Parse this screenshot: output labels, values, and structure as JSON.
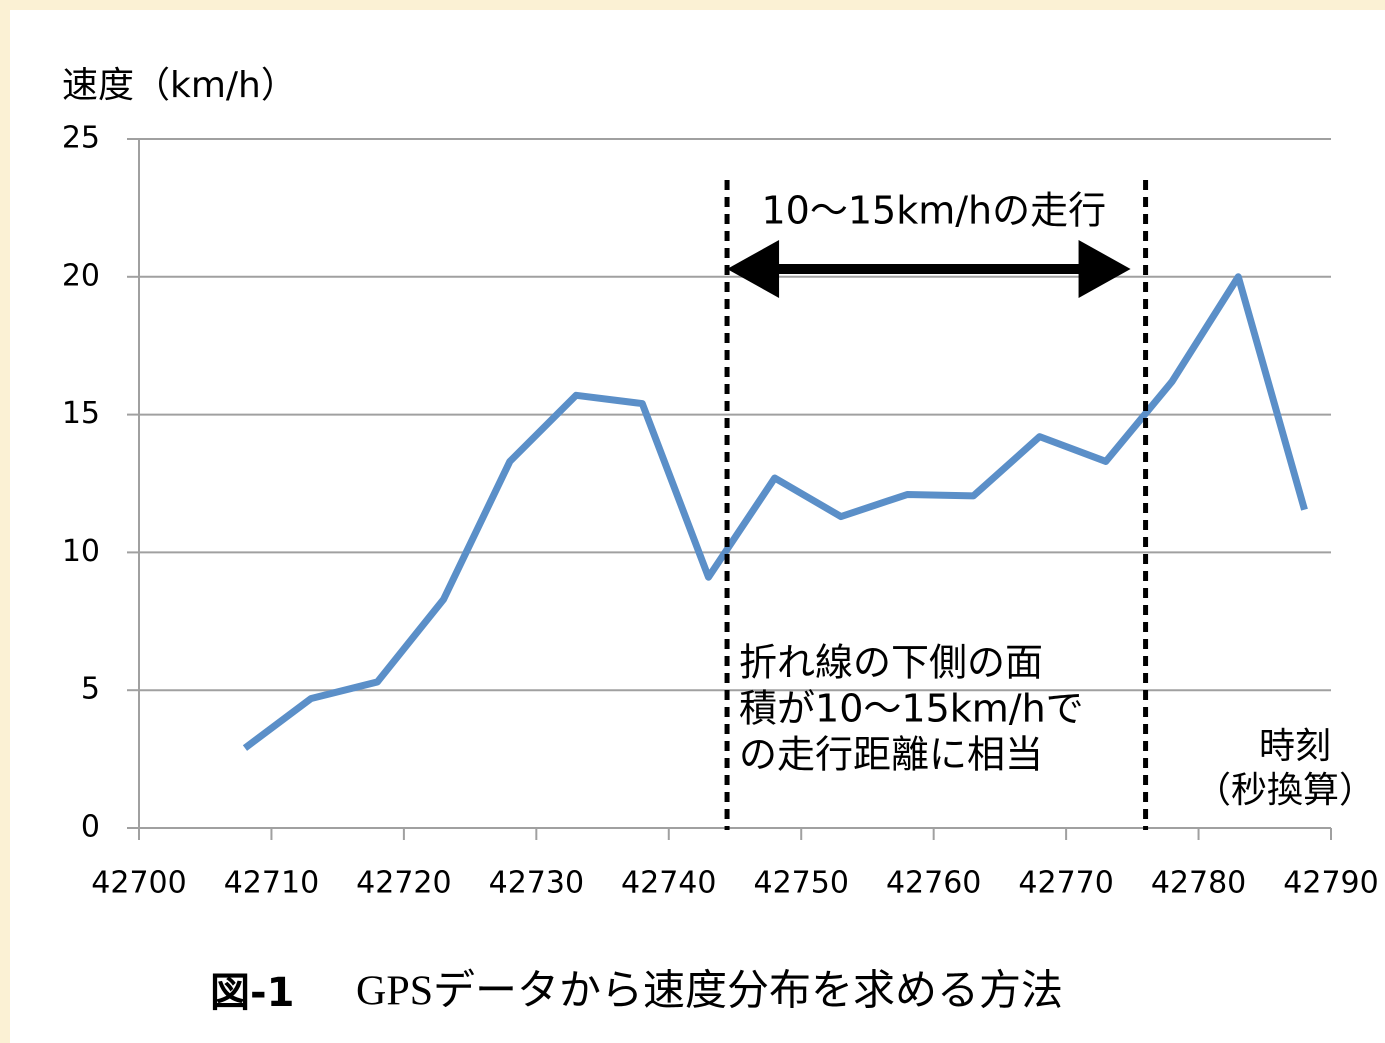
{
  "chart_data": {
    "type": "line",
    "y_axis_label": "速度（km/h）",
    "x_axis_label": [
      "時刻",
      "（秒換算）"
    ],
    "x": [
      42708,
      42713,
      42718,
      42723,
      42728,
      42733,
      42738,
      42743,
      42748,
      42753,
      42758,
      42763,
      42768,
      42773,
      42778,
      42783,
      42788
    ],
    "series": [
      {
        "name": "速度",
        "color": "#5b8fc8",
        "values": [
          2.9,
          4.7,
          5.3,
          8.3,
          13.3,
          15.7,
          15.4,
          9.1,
          12.7,
          11.3,
          12.1,
          12.05,
          14.2,
          13.3,
          16.2,
          20.0,
          11.55
        ]
      }
    ],
    "xlim": [
      42700,
      42790
    ],
    "xticks": [
      42700,
      42710,
      42720,
      42730,
      42740,
      42750,
      42760,
      42770,
      42780,
      42790
    ],
    "ylim": [
      0,
      25
    ],
    "yticks": [
      0,
      5,
      10,
      15,
      20,
      25
    ],
    "grid": true,
    "annotations": {
      "vlines": [
        42744.4,
        42776
      ],
      "arrow_label": "10～15km/hの走行",
      "note": [
        "折れ線の下側の面",
        "積が10～15km/hで",
        "の走行距離に相当"
      ]
    },
    "caption": {
      "label": "図-1",
      "text": "GPSデータから速度分布を求める方法"
    }
  }
}
